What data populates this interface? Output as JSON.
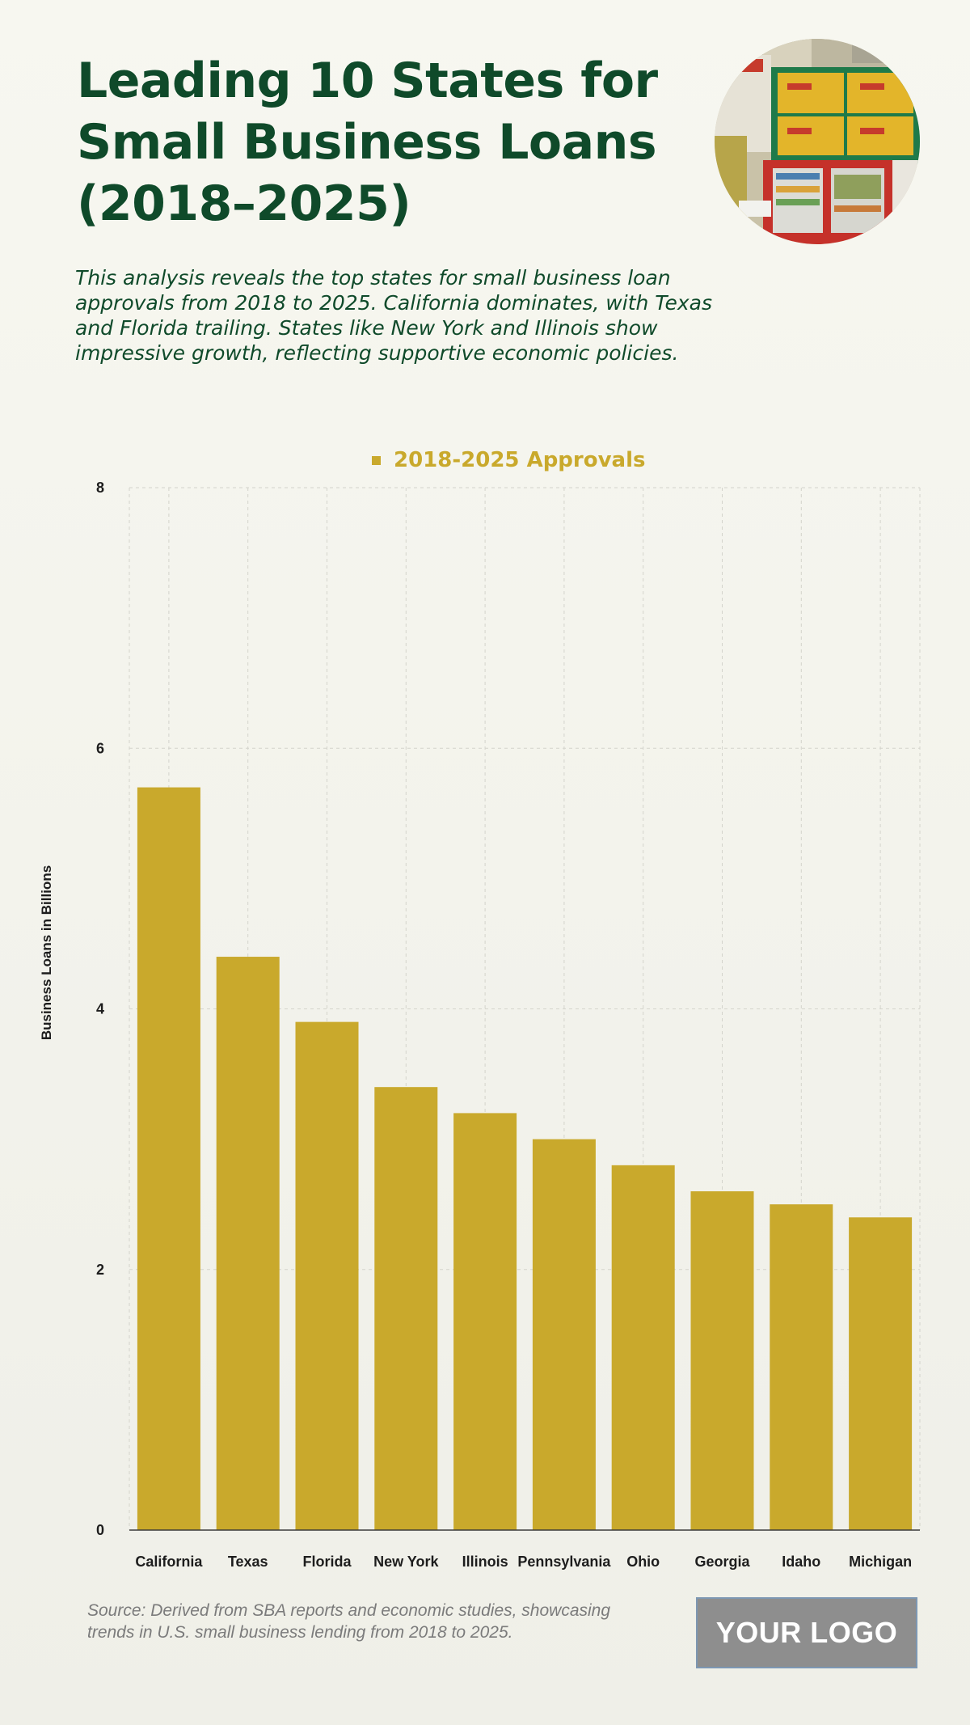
{
  "header": {
    "title": "Leading 10 States for Small Business Loans (2018–2025)",
    "subtitle": "This analysis reveals the top states for small business loan approvals from 2018 to 2025. California dominates, with Texas and Florida trailing. States like New York and Illinois show impressive growth, reflecting supportive economic policies."
  },
  "chart_data": {
    "type": "bar",
    "title": "",
    "xlabel": "",
    "ylabel": "Business Loans in Billions",
    "ylim": [
      0,
      8
    ],
    "yticks": [
      0,
      2,
      4,
      6,
      8
    ],
    "grid": true,
    "legend_position": "top-center",
    "categories": [
      "California",
      "Texas",
      "Florida",
      "New York",
      "Illinois",
      "Pennsylvania",
      "Ohio",
      "Georgia",
      "Idaho",
      "Michigan"
    ],
    "series": [
      {
        "name": "2018-2025 Approvals",
        "color": "#c9a92c",
        "values": [
          5.7,
          4.4,
          3.9,
          3.4,
          3.2,
          3.0,
          2.8,
          2.6,
          2.5,
          2.4
        ]
      }
    ]
  },
  "footer": {
    "source": "Source: Derived from SBA reports and economic studies, showcasing trends in U.S. small business lending from 2018 to 2025.",
    "logo_text": "YOUR LOGO"
  }
}
